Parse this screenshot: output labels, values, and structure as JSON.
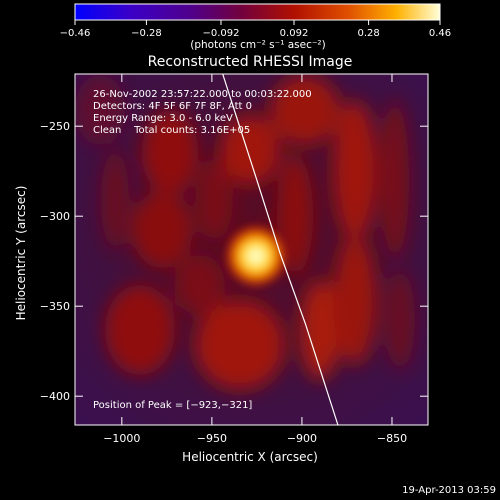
{
  "chart_data": {
    "type": "heatmap",
    "title": "Reconstructed RHESSI Image",
    "xlabel": "Heliocentric X (arcsec)",
    "ylabel": "Heliocentric Y (arcsec)",
    "xlim": [
      -1026,
      -830
    ],
    "ylim": [
      -416,
      -221
    ],
    "x_ticks": [
      -1000,
      -950,
      -900,
      -850
    ],
    "x_tick_labels": [
      "−1000",
      "−950",
      "−900",
      "−850"
    ],
    "y_ticks": [
      -250,
      -300,
      -350,
      -400
    ],
    "y_tick_labels": [
      "−250",
      "−300",
      "−350",
      "−400"
    ],
    "colorbar": {
      "range": [
        -0.46,
        0.46
      ],
      "ticks": [
        -0.46,
        -0.28,
        -0.092,
        0.092,
        0.28,
        0.46
      ],
      "tick_labels": [
        "−0.46",
        "−0.28",
        "−0.092",
        "0.092",
        "0.28",
        "0.46"
      ],
      "unit_label": "(photons cm⁻² s⁻¹ asec⁻²)"
    },
    "info_lines": [
      "26-Nov-2002 23:57:22.000 to 00:03:22.000",
      "Detectors: 4F 5F 6F 7F 8F, Att 0",
      "Energy Range: 3.0 - 6.0 keV",
      "Clean    Total counts: 3.16E+05"
    ],
    "peak_label": "Position of Peak = [−923,−321]",
    "peak": {
      "x": -923,
      "y": -321
    },
    "limb_curve": [
      [
        -944,
        -221
      ],
      [
        -925,
        -280
      ],
      [
        -912,
        -321
      ],
      [
        -898,
        -360
      ],
      [
        -880,
        -416
      ]
    ],
    "timestamp": "19-Apr-2013 03:59",
    "colors": {
      "background": "#000000",
      "text": "#ffffff",
      "limb": "#ffffff"
    }
  }
}
